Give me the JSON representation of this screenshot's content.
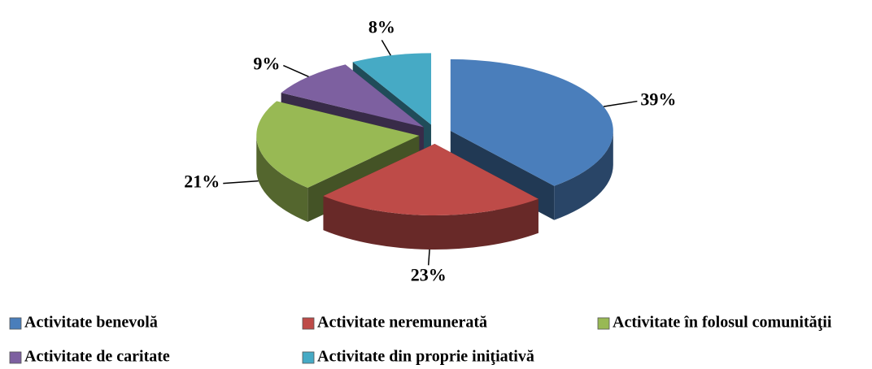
{
  "chart_data": {
    "type": "pie",
    "categories": [
      "Activitate benevolă",
      "Activitate neremunerată",
      "Activitate în folosul comunităţii",
      "Activitate de caritate",
      "Activitate din proprie iniţiativă"
    ],
    "values": [
      39,
      23,
      21,
      9,
      8
    ],
    "value_labels": [
      "39%",
      "23%",
      "21%",
      "9%",
      "8%"
    ],
    "colors": [
      "#4a7ebb",
      "#be4b48",
      "#98b954",
      "#7d60a0",
      "#46aac5"
    ],
    "legend": "bottom"
  }
}
